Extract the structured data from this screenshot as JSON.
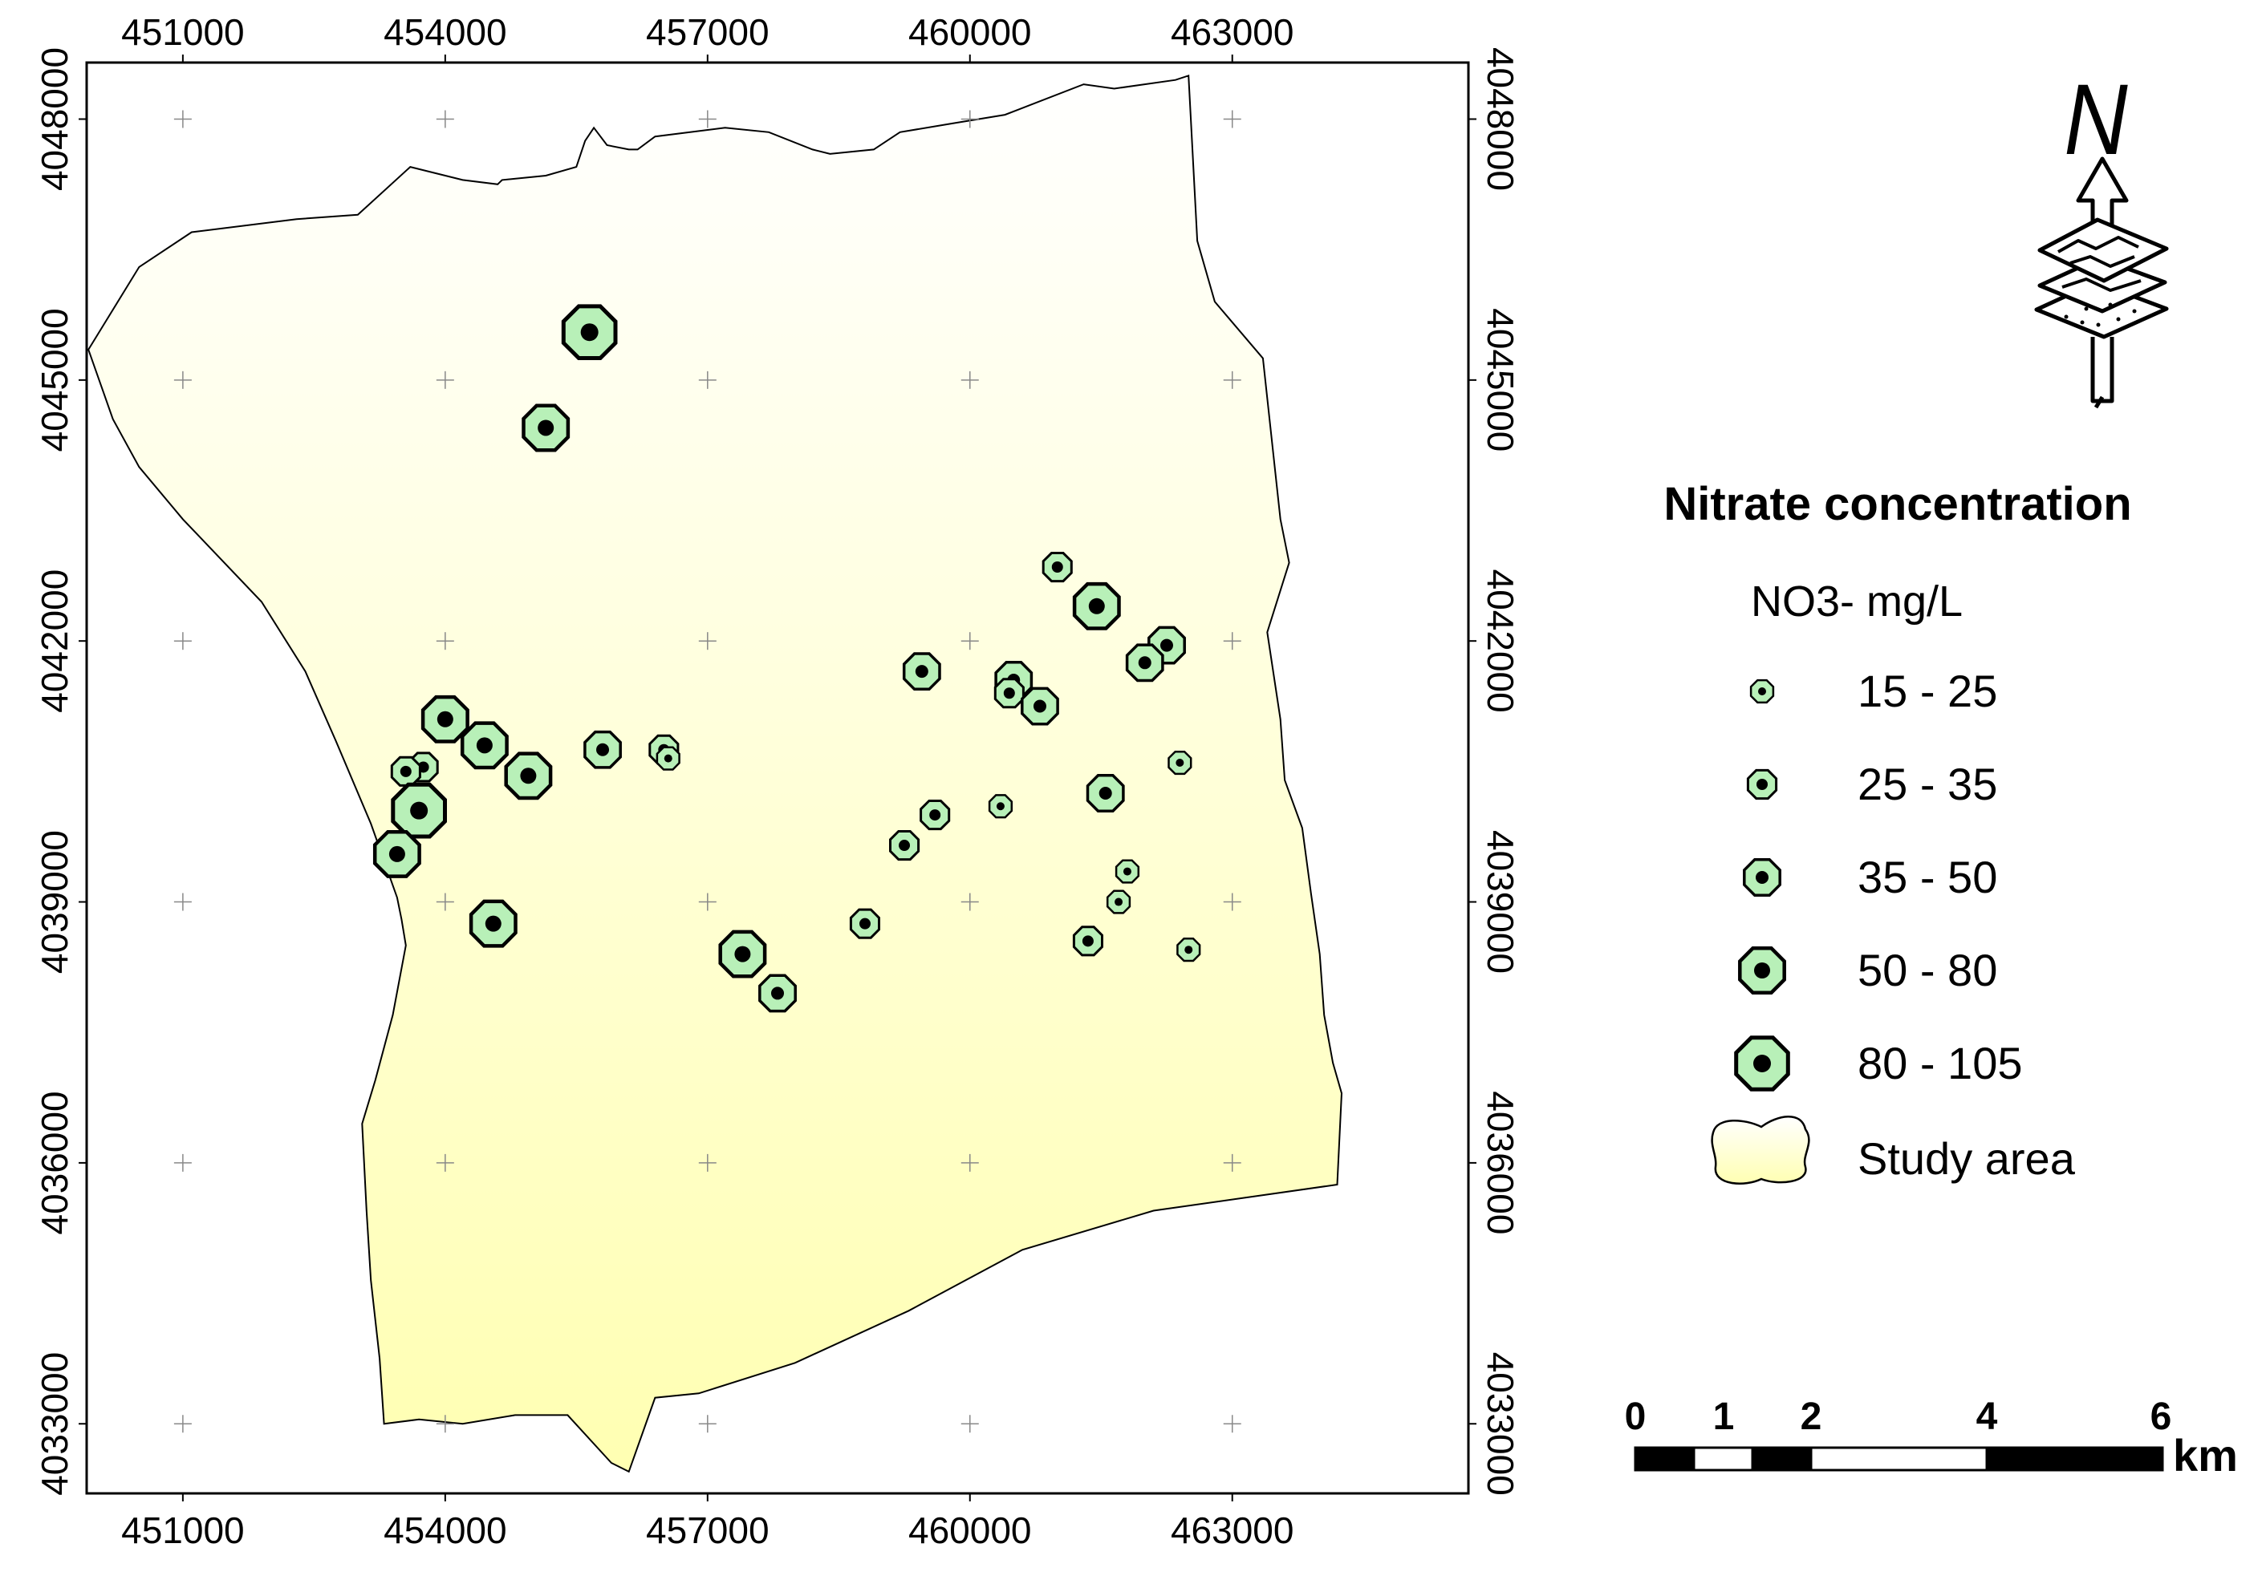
{
  "map": {
    "x_ticks": [
      "451000",
      "454000",
      "457000",
      "460000",
      "463000"
    ],
    "y_ticks": [
      "4048000",
      "4045000",
      "4042000",
      "4039000",
      "4036000",
      "4033000"
    ],
    "x_range": [
      449900,
      465700
    ],
    "y_range": [
      4032200,
      4048650
    ]
  },
  "study_area": {
    "outline": [
      [
        449920,
        4045350
      ],
      [
        450500,
        4046300
      ],
      [
        451100,
        4046700
      ],
      [
        452300,
        4046850
      ],
      [
        453000,
        4046900
      ],
      [
        453600,
        4047450
      ],
      [
        454200,
        4047300
      ],
      [
        454600,
        4047250
      ],
      [
        454650,
        4047300
      ],
      [
        455150,
        4047350
      ],
      [
        455500,
        4047450
      ],
      [
        455600,
        4047750
      ],
      [
        455700,
        4047900
      ],
      [
        455850,
        4047700
      ],
      [
        456100,
        4047650
      ],
      [
        456200,
        4047650
      ],
      [
        456400,
        4047800
      ],
      [
        456800,
        4047850
      ],
      [
        457200,
        4047900
      ],
      [
        457700,
        4047850
      ],
      [
        458200,
        4047650
      ],
      [
        458400,
        4047600
      ],
      [
        458900,
        4047650
      ],
      [
        459200,
        4047850
      ],
      [
        459800,
        4047950
      ],
      [
        460400,
        4048050
      ],
      [
        461300,
        4048400
      ],
      [
        461650,
        4048350
      ],
      [
        462350,
        4048450
      ],
      [
        462500,
        4048500
      ],
      [
        462600,
        4046600
      ],
      [
        462800,
        4045900
      ],
      [
        463350,
        4045250
      ],
      [
        463550,
        4043400
      ],
      [
        463650,
        4042900
      ],
      [
        463400,
        4042100
      ],
      [
        463550,
        4041100
      ],
      [
        463600,
        4040400
      ],
      [
        463800,
        4039850
      ],
      [
        463900,
        4039100
      ],
      [
        464000,
        4038400
      ],
      [
        464050,
        4037700
      ],
      [
        464150,
        4037150
      ],
      [
        464250,
        4036800
      ],
      [
        464200,
        4035750
      ],
      [
        462100,
        4035450
      ],
      [
        460600,
        4035000
      ],
      [
        459300,
        4034300
      ],
      [
        458000,
        4033700
      ],
      [
        456900,
        4033350
      ],
      [
        456400,
        4033300
      ],
      [
        456100,
        4032450
      ],
      [
        455900,
        4032550
      ],
      [
        455400,
        4033100
      ],
      [
        454800,
        4033100
      ],
      [
        454200,
        4033000
      ],
      [
        453700,
        4033050
      ],
      [
        453300,
        4033000
      ],
      [
        453250,
        4033750
      ],
      [
        453150,
        4034650
      ],
      [
        453100,
        4035450
      ],
      [
        453050,
        4036450
      ],
      [
        453200,
        4036950
      ],
      [
        453400,
        4037700
      ],
      [
        453550,
        4038500
      ],
      [
        453500,
        4038800
      ],
      [
        453450,
        4039050
      ],
      [
        453150,
        4039900
      ],
      [
        452750,
        4040850
      ],
      [
        452400,
        4041650
      ],
      [
        451900,
        4042450
      ],
      [
        451000,
        4043400
      ],
      [
        450500,
        4044000
      ],
      [
        450200,
        4044550
      ],
      [
        449920,
        4045350
      ]
    ]
  },
  "wells": [
    {
      "x": 455650,
      "y": 4045550,
      "cls": 5
    },
    {
      "x": 455150,
      "y": 4044450,
      "cls": 4
    },
    {
      "x": 461000,
      "y": 4042850,
      "cls": 2
    },
    {
      "x": 461450,
      "y": 4042400,
      "cls": 4
    },
    {
      "x": 462250,
      "y": 4041950,
      "cls": 3
    },
    {
      "x": 462000,
      "y": 4041750,
      "cls": 3
    },
    {
      "x": 459450,
      "y": 4041650,
      "cls": 3
    },
    {
      "x": 460500,
      "y": 4041550,
      "cls": 3
    },
    {
      "x": 460450,
      "y": 4041400,
      "cls": 2
    },
    {
      "x": 460800,
      "y": 4041250,
      "cls": 3
    },
    {
      "x": 454000,
      "y": 4041100,
      "cls": 4
    },
    {
      "x": 454450,
      "y": 4040800,
      "cls": 4
    },
    {
      "x": 455800,
      "y": 4040750,
      "cls": 3
    },
    {
      "x": 456500,
      "y": 4040750,
      "cls": 2
    },
    {
      "x": 456550,
      "y": 4040650,
      "cls": 1
    },
    {
      "x": 462400,
      "y": 4040600,
      "cls": 1
    },
    {
      "x": 453750,
      "y": 4040550,
      "cls": 2
    },
    {
      "x": 453550,
      "y": 4040500,
      "cls": 2
    },
    {
      "x": 454950,
      "y": 4040450,
      "cls": 4
    },
    {
      "x": 461550,
      "y": 4040250,
      "cls": 3
    },
    {
      "x": 460350,
      "y": 4040100,
      "cls": 1
    },
    {
      "x": 453700,
      "y": 4040050,
      "cls": 5
    },
    {
      "x": 459600,
      "y": 4040000,
      "cls": 2
    },
    {
      "x": 459250,
      "y": 4039650,
      "cls": 2
    },
    {
      "x": 453450,
      "y": 4039550,
      "cls": 4
    },
    {
      "x": 461800,
      "y": 4039350,
      "cls": 1
    },
    {
      "x": 461700,
      "y": 4039000,
      "cls": 1
    },
    {
      "x": 458800,
      "y": 4038750,
      "cls": 2
    },
    {
      "x": 454550,
      "y": 4038750,
      "cls": 4
    },
    {
      "x": 461350,
      "y": 4038550,
      "cls": 2
    },
    {
      "x": 462500,
      "y": 4038450,
      "cls": 1
    },
    {
      "x": 457400,
      "y": 4038400,
      "cls": 4
    },
    {
      "x": 457800,
      "y": 4037950,
      "cls": 3
    }
  ],
  "legend": {
    "title": "Nitrate concentration",
    "subtitle": "NO3- mg/L",
    "classes": [
      {
        "id": 1,
        "label": "15 - 25"
      },
      {
        "id": 2,
        "label": "25 - 35"
      },
      {
        "id": 3,
        "label": "35 - 50"
      },
      {
        "id": 4,
        "label": "50 - 80"
      },
      {
        "id": 5,
        "label": "80 - 105"
      }
    ],
    "study_area_label": "Study area"
  },
  "north_arrow": {
    "label": "N"
  },
  "scale_bar": {
    "ticks": [
      "0",
      "1",
      "2",
      "4",
      "6"
    ],
    "unit": "km"
  },
  "colors": {
    "fill_top": "#ffffff",
    "fill_bottom": "#ffffb2",
    "symbol_fill": "#b8f0b8",
    "outline": "#000000",
    "grid_cross": "#888888"
  }
}
